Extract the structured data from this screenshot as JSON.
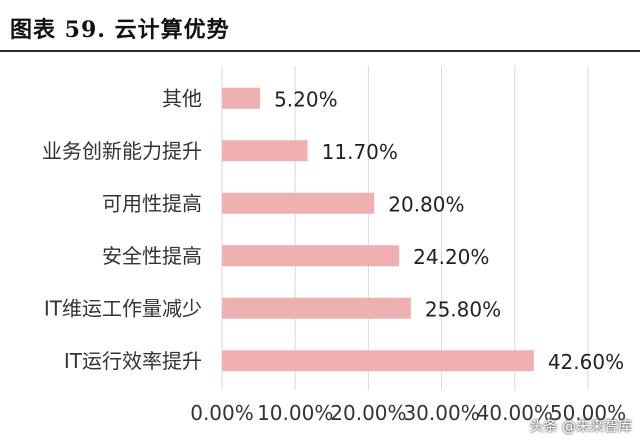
{
  "title": "图表 59. 云计算优势",
  "watermark": "头条 @未来智库",
  "chart_data": {
    "type": "bar",
    "orientation": "horizontal",
    "title": "",
    "categories": [
      "其他",
      "业务创新能力提升",
      "可用性提高",
      "安全性提高",
      "IT维运工作量减少",
      "IT运行效率提升"
    ],
    "values": [
      5.2,
      11.7,
      20.8,
      24.2,
      25.8,
      42.6
    ],
    "value_labels": [
      "5.20%",
      "11.70%",
      "20.80%",
      "24.20%",
      "25.80%",
      "42.60%"
    ],
    "xlim": [
      0,
      50
    ],
    "xticks": [
      0,
      10,
      20,
      30,
      40,
      50
    ],
    "xtick_labels": [
      "0.00%",
      "10.00%",
      "20.00%",
      "30.00%",
      "40.00%",
      "50.00%"
    ],
    "bar_color": "#eeb0b0",
    "gridlines": "vertical",
    "legend": "none"
  }
}
